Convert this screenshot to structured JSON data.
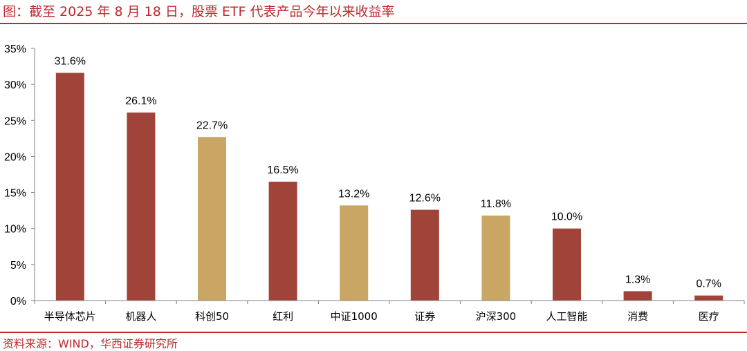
{
  "header": {
    "title": "图：截至 2025 年 8 月 18 日，股票 ETF 代表产品今年以来收益率"
  },
  "footer": {
    "source": "资料来源：WIND，华西证券研究所"
  },
  "chart_data": {
    "type": "bar",
    "categories": [
      "半导体芯片",
      "机器人",
      "科创50",
      "红利",
      "中证1000",
      "证券",
      "沪深300",
      "人工智能",
      "消费",
      "医疗"
    ],
    "values": [
      31.6,
      26.1,
      22.7,
      16.5,
      13.2,
      12.6,
      11.8,
      10.0,
      1.3,
      0.7
    ],
    "data_labels": [
      "31.6%",
      "26.1%",
      "22.7%",
      "16.5%",
      "13.2%",
      "12.6%",
      "11.8%",
      "10.0%",
      "1.3%",
      "0.7%"
    ],
    "bar_colors": [
      "#a0443a",
      "#a0443a",
      "#c9a663",
      "#a0443a",
      "#c9a663",
      "#a0443a",
      "#c9a663",
      "#a0443a",
      "#a0443a",
      "#a0443a"
    ],
    "ylim": [
      0,
      35
    ],
    "yticks": [
      0,
      5,
      10,
      15,
      20,
      25,
      30,
      35
    ],
    "ytick_labels": [
      "0%",
      "5%",
      "10%",
      "15%",
      "20%",
      "25%",
      "30%",
      "35%"
    ],
    "grid": false,
    "legend": "none",
    "title": "",
    "xlabel": "",
    "ylabel": ""
  }
}
